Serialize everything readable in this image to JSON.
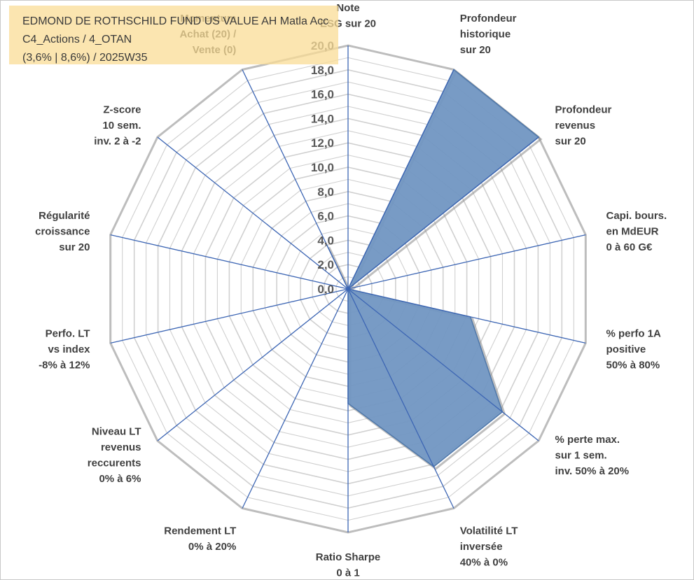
{
  "title": {
    "line1": "EDMOND DE ROTHSCHILD FUND US VALUE AH Matla Acc",
    "line2": "C4_Actions / 4_OTAN",
    "line3": "(3,6% | 8,6%) / 2025W35"
  },
  "colors": {
    "fill": "#7196c2",
    "fill_stroke": "#4f78aa",
    "spoke": "#3d66b4",
    "grid": "#d0d0d0",
    "outer": "#bdbdbd",
    "shadow": "#8a8a8a",
    "title_bg": "#fadc96"
  },
  "chart_data": {
    "type": "radar",
    "rmin": 0,
    "rmax": 20,
    "ticks": [
      "0,0",
      "2,0",
      "4,0",
      "6,0",
      "8,0",
      "10,0",
      "12,0",
      "14,0",
      "16,0",
      "18,0",
      "20,0"
    ],
    "grid": true,
    "axes": [
      [
        "Note",
        "ESG sur 20"
      ],
      [
        "Profondeur",
        "historique",
        "sur 20"
      ],
      [
        "Profondeur",
        "revenus",
        "sur 20"
      ],
      [
        "Capi. bours.",
        "en MdEUR",
        "0 à 60 G€"
      ],
      [
        "% perfo 1A",
        "positive",
        "50% à 80%"
      ],
      [
        "% perte max.",
        "sur 1 sem.",
        "inv. 50% à 20%"
      ],
      [
        "Volatilité LT",
        "inversée",
        "40% à 0%"
      ],
      [
        "Ratio Sharpe",
        "0 à 1"
      ],
      [
        "Rendement LT",
        "0% à 20%"
      ],
      [
        "Niveau LT",
        "revenus",
        "reccurents",
        "0% à 6%"
      ],
      [
        "Perfo. LT",
        "vs index",
        "-8% à 12%"
      ],
      [
        "Régularité",
        "croissance",
        "sur 20"
      ],
      [
        "Z-score",
        "10 sem.",
        "inv. 2 à -2"
      ],
      [
        "Momentum",
        "Achat (20) /",
        "Vente (0)"
      ]
    ],
    "values": [
      0,
      20,
      20,
      0,
      10.3,
      16.2,
      16.2,
      9.4,
      0,
      0,
      0,
      0,
      0,
      4.0
    ]
  }
}
